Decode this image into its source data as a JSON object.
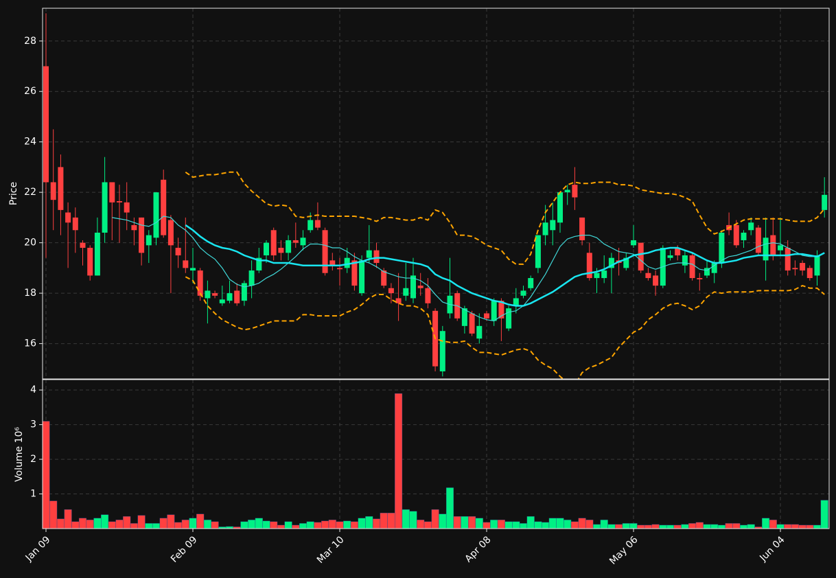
{
  "chart_data": [
    {
      "type": "candlestick",
      "ylabel": "Price",
      "grid": true,
      "up_color": "#00f084",
      "down_color": "#ff4040",
      "categories": [
        "Jan 09",
        null,
        null,
        null,
        null,
        null,
        null,
        null,
        null,
        null,
        null,
        null,
        null,
        null,
        null,
        null,
        null,
        null,
        null,
        null,
        "Feb 09",
        null,
        null,
        null,
        null,
        null,
        null,
        null,
        null,
        null,
        null,
        null,
        null,
        null,
        null,
        null,
        null,
        null,
        null,
        null,
        "Mar 10",
        null,
        null,
        null,
        null,
        null,
        null,
        null,
        null,
        null,
        null,
        null,
        null,
        null,
        null,
        null,
        null,
        null,
        null,
        null,
        "Apr 08",
        null,
        null,
        null,
        null,
        null,
        null,
        null,
        null,
        null,
        null,
        null,
        null,
        null,
        null,
        null,
        null,
        null,
        null,
        null,
        "May 06",
        null,
        null,
        null,
        null,
        null,
        null,
        null,
        null,
        null,
        null,
        null,
        null,
        null,
        null,
        null,
        null,
        null,
        null,
        null,
        "Jun 04",
        null,
        null,
        null,
        null,
        null,
        null
      ],
      "open": [
        27,
        22.4,
        23.0,
        21.2,
        21.0,
        20.0,
        19.8,
        18.7,
        20.4,
        22.4,
        21.65,
        21.6,
        20.7,
        21.0,
        19.9,
        20.2,
        22.5,
        20.9,
        19.8,
        19.3,
        18.9,
        18.9,
        17.8,
        18.0,
        17.6,
        17.7,
        18.1,
        17.7,
        18.3,
        18.9,
        19.5,
        20.5,
        19.8,
        19.6,
        20.1,
        19.9,
        20.5,
        20.9,
        20.5,
        19.3,
        19.0,
        19.0,
        19.3,
        18.0,
        19.4,
        19.7,
        18.9,
        18.2,
        17.8,
        17.9,
        17.8,
        18.3,
        18.2,
        17.3,
        14.9,
        17.2,
        18.0,
        16.7,
        17.2,
        16.2,
        17.2,
        16.9,
        17.7,
        16.6,
        17.5,
        17.9,
        18.2,
        19.0,
        20.3,
        20.5,
        20.8,
        22.0,
        22.3,
        21.0,
        19.6,
        18.6,
        18.6,
        19.0,
        19.3,
        19.0,
        19.9,
        20.0,
        18.8,
        18.7,
        18.3,
        19.4,
        19.8,
        19.1,
        19.5,
        18.6,
        18.7,
        18.8,
        19.2,
        20.7,
        20.7,
        20.1,
        20.5,
        20.6,
        19.3,
        20.3,
        19.7,
        19.8,
        19.0,
        19.2,
        19.0,
        18.7,
        21.3
      ],
      "high": [
        29.1,
        24.5,
        23.5,
        21.6,
        21.4,
        20.1,
        19.9,
        21.0,
        23.4,
        22.4,
        22.3,
        22.4,
        21.0,
        21.0,
        20.5,
        22.0,
        22.9,
        21.1,
        20.2,
        21.0,
        19.8,
        19.0,
        18.5,
        18.1,
        18.3,
        18.5,
        18.4,
        18.5,
        19.3,
        19.8,
        20.1,
        20.6,
        20.1,
        20.3,
        20.8,
        20.5,
        21.2,
        21.6,
        20.6,
        19.6,
        19.4,
        19.8,
        19.6,
        19.5,
        20.7,
        20.0,
        19.0,
        18.4,
        18.8,
        19.2,
        19.4,
        18.8,
        18.6,
        17.4,
        16.7,
        19.4,
        18.1,
        17.5,
        17.3,
        17.2,
        17.3,
        17.8,
        17.8,
        17.5,
        18.2,
        18.3,
        18.7,
        20.3,
        21.5,
        21.6,
        22.0,
        22.3,
        23.0,
        21.0,
        20.0,
        19.0,
        19.5,
        19.6,
        19.8,
        19.6,
        20.7,
        20.0,
        19.0,
        18.9,
        19.9,
        19.7,
        19.9,
        19.7,
        19.6,
        18.8,
        19.3,
        19.3,
        20.5,
        21.2,
        20.9,
        20.5,
        21.0,
        20.7,
        21.0,
        21.0,
        21.0,
        20.1,
        19.3,
        19.3,
        19.1,
        19.7,
        22.6
      ],
      "low": [
        19.4,
        20.5,
        20.3,
        19.0,
        19.6,
        19.1,
        18.5,
        18.7,
        20.0,
        20.1,
        20.0,
        20.5,
        19.9,
        19.1,
        19.2,
        19.9,
        20.2,
        18.0,
        19.0,
        18.8,
        18.4,
        17.7,
        16.8,
        17.8,
        17.5,
        17.6,
        17.5,
        17.5,
        17.8,
        18.8,
        19.2,
        19.3,
        19.3,
        19.3,
        19.8,
        19.7,
        20.4,
        20.5,
        18.7,
        18.9,
        18.3,
        18.8,
        18.1,
        17.9,
        19.2,
        19.0,
        18.2,
        17.6,
        16.9,
        17.7,
        17.6,
        17.9,
        17.4,
        14.9,
        14.7,
        17.0,
        16.9,
        16.4,
        16.3,
        16.0,
        16.9,
        16.7,
        16.1,
        16.5,
        17.2,
        17.8,
        18.1,
        18.8,
        19.9,
        19.9,
        20.4,
        21.5,
        21.3,
        19.9,
        18.5,
        18.0,
        18.4,
        18.0,
        18.7,
        18.9,
        19.8,
        18.8,
        18.5,
        17.9,
        18.2,
        19.3,
        19.3,
        18.8,
        18.5,
        18.1,
        18.6,
        18.4,
        19.0,
        20.3,
        19.8,
        19.8,
        20.3,
        19.5,
        18.5,
        19.3,
        19.5,
        18.7,
        18.7,
        18.7,
        18.5,
        18.3,
        21.0
      ],
      "close": [
        22.4,
        21.7,
        21.3,
        20.8,
        20.5,
        19.8,
        18.7,
        20.4,
        22.4,
        21.6,
        21.6,
        21.2,
        20.5,
        19.6,
        20.3,
        22.0,
        20.3,
        19.9,
        19.5,
        19.0,
        19.0,
        17.9,
        18.1,
        17.9,
        17.75,
        18.0,
        17.6,
        18.4,
        18.9,
        19.4,
        20.0,
        19.5,
        19.6,
        20.1,
        20.0,
        20.2,
        20.9,
        20.6,
        18.8,
        19.1,
        18.95,
        19.4,
        18.3,
        19.3,
        19.7,
        19.2,
        18.3,
        18.0,
        17.6,
        18.2,
        18.7,
        18.2,
        17.6,
        15.1,
        16.5,
        17.9,
        17.0,
        17.4,
        16.4,
        16.7,
        17.0,
        17.7,
        17.0,
        17.4,
        17.8,
        18.1,
        18.6,
        20.3,
        20.8,
        20.9,
        22.0,
        22.1,
        21.8,
        20.1,
        18.6,
        18.8,
        18.9,
        19.4,
        19.2,
        19.4,
        20.1,
        18.9,
        18.6,
        18.3,
        19.8,
        19.5,
        19.5,
        19.5,
        18.6,
        18.55,
        19.0,
        19.2,
        20.4,
        20.5,
        19.9,
        20.4,
        20.8,
        19.6,
        20.2,
        19.5,
        19.9,
        18.9,
        18.95,
        18.9,
        18.6,
        19.5,
        21.9
      ],
      "overlays": [
        {
          "color": "#40d8d8",
          "width": 1.2,
          "dashed": false,
          "values": [
            null,
            null,
            null,
            null,
            null,
            null,
            null,
            null,
            null,
            21.0,
            20.95,
            20.9,
            20.8,
            20.7,
            20.65,
            20.8,
            21.05,
            21.0,
            20.7,
            20.5,
            20.2,
            19.8,
            19.55,
            19.35,
            19.0,
            18.55,
            18.35,
            18.25,
            18.3,
            18.4,
            18.6,
            18.75,
            18.95,
            19.2,
            19.45,
            19.75,
            19.95,
            19.95,
            19.9,
            19.8,
            19.8,
            19.65,
            19.45,
            19.3,
            19.2,
            19.05,
            18.85,
            18.75,
            18.65,
            18.6,
            18.6,
            18.5,
            18.3,
            17.95,
            17.65,
            17.55,
            17.5,
            17.35,
            17.2,
            17.05,
            16.95,
            16.9,
            17.1,
            17.25,
            17.3,
            17.5,
            17.85,
            18.3,
            18.75,
            19.3,
            19.85,
            20.15,
            20.25,
            20.3,
            20.3,
            20.2,
            19.95,
            19.8,
            19.65,
            19.6,
            19.55,
            19.3,
            19.05,
            18.95,
            19.05,
            19.15,
            19.2,
            19.2,
            19.15,
            18.95,
            18.9,
            19.1,
            19.3,
            19.45,
            19.5,
            19.6,
            19.7,
            19.85,
            19.95,
            20.0,
            19.95,
            19.8,
            19.65,
            19.5,
            19.45,
            19.45,
            19.6
          ]
        },
        {
          "color": "#19e6f0",
          "width": 2.5,
          "dashed": false,
          "values": [
            null,
            null,
            null,
            null,
            null,
            null,
            null,
            null,
            null,
            null,
            null,
            null,
            null,
            null,
            null,
            null,
            null,
            null,
            null,
            20.7,
            20.5,
            20.25,
            20.05,
            19.9,
            19.8,
            19.75,
            19.65,
            19.5,
            19.4,
            19.3,
            19.3,
            19.2,
            19.2,
            19.2,
            19.15,
            19.1,
            19.1,
            19.1,
            19.1,
            19.1,
            19.1,
            19.15,
            19.2,
            19.25,
            19.35,
            19.4,
            19.4,
            19.35,
            19.3,
            19.25,
            19.2,
            19.15,
            19.05,
            18.75,
            18.6,
            18.5,
            18.3,
            18.15,
            18.0,
            17.9,
            17.8,
            17.7,
            17.65,
            17.55,
            17.5,
            17.5,
            17.6,
            17.75,
            17.9,
            18.05,
            18.25,
            18.45,
            18.65,
            18.75,
            18.8,
            18.85,
            18.95,
            19.1,
            19.25,
            19.35,
            19.5,
            19.55,
            19.6,
            19.7,
            19.75,
            19.8,
            19.8,
            19.7,
            19.6,
            19.45,
            19.3,
            19.2,
            19.2,
            19.25,
            19.3,
            19.4,
            19.45,
            19.5,
            19.5,
            19.5,
            19.5,
            19.5,
            19.55,
            19.55,
            19.5,
            19.45,
            19.6
          ]
        },
        {
          "color": "#ffa500",
          "width": 2,
          "dashed": true,
          "values": [
            null,
            null,
            null,
            null,
            null,
            null,
            null,
            null,
            null,
            null,
            null,
            null,
            null,
            null,
            null,
            null,
            null,
            null,
            null,
            22.8,
            22.6,
            22.65,
            22.7,
            22.7,
            22.75,
            22.8,
            22.8,
            22.35,
            22.05,
            21.8,
            21.55,
            21.45,
            21.5,
            21.45,
            21.05,
            21.0,
            21.05,
            21.1,
            21.05,
            21.05,
            21.05,
            21.05,
            21.05,
            21.0,
            20.95,
            20.85,
            21.0,
            21.0,
            20.95,
            20.9,
            20.9,
            21.0,
            20.9,
            21.3,
            21.2,
            20.8,
            20.3,
            20.3,
            20.25,
            20.1,
            19.9,
            19.8,
            19.7,
            19.35,
            19.15,
            19.15,
            19.55,
            20.5,
            21.2,
            21.6,
            22.0,
            22.3,
            22.4,
            22.35,
            22.35,
            22.4,
            22.4,
            22.4,
            22.3,
            22.3,
            22.25,
            22.1,
            22.05,
            22.0,
            21.95,
            21.95,
            21.9,
            21.8,
            21.65,
            21.1,
            20.6,
            20.35,
            20.45,
            20.6,
            20.75,
            20.9,
            20.95,
            20.95,
            20.95,
            20.95,
            20.95,
            20.9,
            20.85,
            20.85,
            20.85,
            21.0,
            21.35
          ]
        },
        {
          "color": "#ffa500",
          "width": 2,
          "dashed": true,
          "values": [
            null,
            null,
            null,
            null,
            null,
            null,
            null,
            null,
            null,
            null,
            null,
            null,
            null,
            null,
            null,
            null,
            null,
            null,
            null,
            18.65,
            18.5,
            18.0,
            17.5,
            17.2,
            16.95,
            16.8,
            16.65,
            16.55,
            16.6,
            16.7,
            16.8,
            16.9,
            16.9,
            16.9,
            16.9,
            17.15,
            17.15,
            17.1,
            17.1,
            17.1,
            17.1,
            17.25,
            17.35,
            17.55,
            17.8,
            17.95,
            17.95,
            17.75,
            17.6,
            17.5,
            17.5,
            17.4,
            17.15,
            16.2,
            16.1,
            16.05,
            16.05,
            16.1,
            15.85,
            15.65,
            15.65,
            15.6,
            15.55,
            15.65,
            15.75,
            15.8,
            15.7,
            15.35,
            15.15,
            15.0,
            14.7,
            14.45,
            14.35,
            14.85,
            15.05,
            15.15,
            15.3,
            15.45,
            15.85,
            16.15,
            16.45,
            16.6,
            16.95,
            17.15,
            17.4,
            17.55,
            17.6,
            17.5,
            17.35,
            17.5,
            17.85,
            18.05,
            18.0,
            18.05,
            18.05,
            18.05,
            18.05,
            18.1,
            18.1,
            18.1,
            18.1,
            18.1,
            18.15,
            18.3,
            18.2,
            18.2,
            17.95
          ]
        }
      ],
      "ylim": [
        14.6,
        29.3
      ],
      "yticks": [
        16,
        18,
        20,
        22,
        24,
        26,
        28
      ]
    },
    {
      "type": "bar",
      "ylabel": "Volume  10⁶",
      "grid": true,
      "values": [
        3.1,
        0.8,
        0.28,
        0.55,
        0.2,
        0.3,
        0.25,
        0.3,
        0.4,
        0.2,
        0.25,
        0.35,
        0.15,
        0.38,
        0.15,
        0.15,
        0.3,
        0.4,
        0.18,
        0.25,
        0.3,
        0.42,
        0.25,
        0.2,
        0.05,
        0.06,
        0.05,
        0.2,
        0.25,
        0.3,
        0.22,
        0.2,
        0.1,
        0.2,
        0.1,
        0.15,
        0.2,
        0.18,
        0.22,
        0.25,
        0.2,
        0.22,
        0.2,
        0.3,
        0.35,
        0.28,
        0.45,
        0.45,
        3.9,
        0.55,
        0.5,
        0.25,
        0.2,
        0.55,
        0.42,
        1.18,
        0.35,
        0.35,
        0.35,
        0.3,
        0.18,
        0.25,
        0.25,
        0.2,
        0.2,
        0.15,
        0.35,
        0.2,
        0.18,
        0.3,
        0.3,
        0.25,
        0.2,
        0.3,
        0.25,
        0.12,
        0.25,
        0.12,
        0.12,
        0.15,
        0.15,
        0.1,
        0.1,
        0.12,
        0.1,
        0.1,
        0.1,
        0.12,
        0.15,
        0.18,
        0.12,
        0.12,
        0.1,
        0.15,
        0.15,
        0.1,
        0.12,
        0.05,
        0.3,
        0.25,
        0.12,
        0.12,
        0.12,
        0.1,
        0.1,
        0.1,
        0.82
      ],
      "ylim": [
        0,
        4.3
      ],
      "yticks": [
        1,
        2,
        3,
        4
      ]
    }
  ]
}
